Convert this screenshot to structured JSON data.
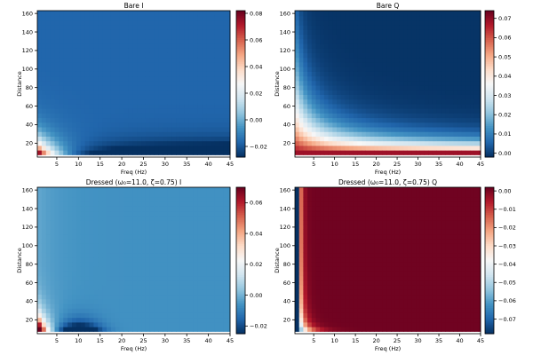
{
  "figure": {
    "colormap": [
      "#053061",
      "#2166ac",
      "#4393c3",
      "#92c5de",
      "#d1e5f0",
      "#f7f7f7",
      "#fddbc7",
      "#f4a582",
      "#d6604d",
      "#b2182b",
      "#67001f"
    ]
  },
  "chart_data": [
    {
      "type": "heatmap",
      "id": "bare_i",
      "title": "Bare I",
      "xlabel": "Freq (Hz)",
      "ylabel": "Distance",
      "xlim": [
        0.5,
        45
      ],
      "ylim": [
        5,
        163
      ],
      "x_ticks": [
        5,
        10,
        15,
        20,
        25,
        30,
        35,
        40,
        45
      ],
      "y_ticks": [
        20,
        40,
        60,
        80,
        100,
        120,
        140,
        160
      ],
      "freq": {
        "start": 1,
        "end": 45,
        "step": 1
      },
      "distance": {
        "start": 10,
        "end": 160,
        "step": 5
      },
      "vmin": -0.028,
      "vmax": 0.082,
      "colorbar_ticks": [
        -0.02,
        0.0,
        0.02,
        0.04,
        0.06,
        0.08
      ],
      "colorbar_labels": [
        "−0.02",
        "0.00",
        "0.02",
        "0.04",
        "0.06",
        "0.08"
      ],
      "model": "bareI"
    },
    {
      "type": "heatmap",
      "id": "bare_q",
      "title": "Bare Q",
      "xlabel": "Freq (Hz)",
      "ylabel": "Distance",
      "xlim": [
        0.5,
        45
      ],
      "ylim": [
        5,
        163
      ],
      "x_ticks": [
        5,
        10,
        15,
        20,
        25,
        30,
        35,
        40,
        45
      ],
      "y_ticks": [
        20,
        40,
        60,
        80,
        100,
        120,
        140,
        160
      ],
      "freq": {
        "start": 1,
        "end": 45,
        "step": 1
      },
      "distance": {
        "start": 10,
        "end": 160,
        "step": 5
      },
      "vmin": -0.002,
      "vmax": 0.074,
      "colorbar_ticks": [
        0.0,
        0.01,
        0.02,
        0.03,
        0.04,
        0.05,
        0.06,
        0.07
      ],
      "colorbar_labels": [
        "0.00",
        "0.01",
        "0.02",
        "0.03",
        "0.04",
        "0.05",
        "0.06",
        "0.07"
      ],
      "model": "bareQ"
    },
    {
      "type": "heatmap",
      "id": "dressed_i",
      "title": "Dressed (ω₀=11.0, ζ=0.75) I",
      "xlabel": "Freq (Hz)",
      "ylabel": "Distance",
      "xlim": [
        0.5,
        45
      ],
      "ylim": [
        5,
        163
      ],
      "x_ticks": [
        5,
        10,
        15,
        20,
        25,
        30,
        35,
        40,
        45
      ],
      "y_ticks": [
        20,
        40,
        60,
        80,
        100,
        120,
        140,
        160
      ],
      "freq": {
        "start": 1,
        "end": 45,
        "step": 1
      },
      "distance": {
        "start": 10,
        "end": 160,
        "step": 5
      },
      "vmin": -0.025,
      "vmax": 0.07,
      "colorbar_ticks": [
        -0.02,
        0.0,
        0.02,
        0.04,
        0.06
      ],
      "colorbar_labels": [
        "−0.02",
        "0.00",
        "0.02",
        "0.04",
        "0.06"
      ],
      "model": "dressedI"
    },
    {
      "type": "heatmap",
      "id": "dressed_q",
      "title": "Dressed (ω₀=11.0, ζ=0.75) Q",
      "xlabel": "Freq (Hz)",
      "ylabel": "Distance",
      "xlim": [
        0.5,
        45
      ],
      "ylim": [
        5,
        163
      ],
      "x_ticks": [
        5,
        10,
        15,
        20,
        25,
        30,
        35,
        40,
        45
      ],
      "y_ticks": [
        20,
        40,
        60,
        80,
        100,
        120,
        140,
        160
      ],
      "freq": {
        "start": 1,
        "end": 45,
        "step": 1
      },
      "distance": {
        "start": 10,
        "end": 160,
        "step": 5
      },
      "vmin": -0.078,
      "vmax": 0.002,
      "colorbar_ticks": [
        0.0,
        -0.01,
        -0.02,
        -0.03,
        -0.04,
        -0.05,
        -0.06,
        -0.07
      ],
      "colorbar_labels": [
        "0.00",
        "−0.01",
        "−0.02",
        "−0.03",
        "−0.04",
        "−0.05",
        "−0.06",
        "−0.07"
      ],
      "model": "dressedQ"
    }
  ]
}
